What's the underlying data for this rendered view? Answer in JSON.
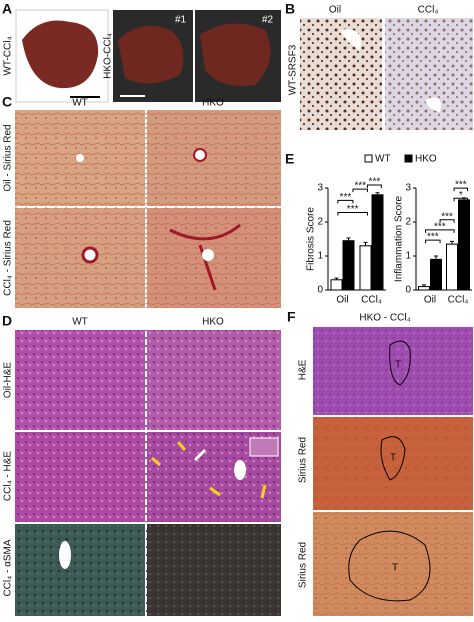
{
  "panels": {
    "a": {
      "letter": "A",
      "row_label": "WT-CCl₄",
      "group_label": "HKO-CCl₄",
      "sample1": "#1",
      "sample2": "#2"
    },
    "b": {
      "letter": "B",
      "col1": "Oil",
      "col2": "CCl₄",
      "row_label": "WT-SRSF3"
    },
    "c": {
      "letter": "C",
      "col1": "WT",
      "col2": "HKO",
      "row1": "Oil - Sirius Red",
      "row2": "CCl₄ - Sirius Red"
    },
    "d": {
      "letter": "D",
      "col1": "WT",
      "col2": "HKO",
      "row1": "Oil-H&E",
      "row2": "CCl₄ - H&E",
      "row3": "CCl₄ - αSMA"
    },
    "e": {
      "letter": "E"
    },
    "f": {
      "letter": "F",
      "title": "HKO - CCl₄",
      "row1": "H&E",
      "row2": "Sirius Red",
      "row3": "Sirius Red",
      "tumor1": "T",
      "tumor2": "T",
      "tumor3": "T"
    }
  },
  "chart_data": [
    {
      "type": "bar",
      "ylabel": "Fibrosis Score",
      "categories": [
        "Oil",
        "CCl₄"
      ],
      "ylim": [
        0,
        3
      ],
      "yticks": [
        0,
        1,
        2,
        3
      ],
      "series": [
        {
          "name": "WT",
          "color": "#ffffff",
          "values": [
            0.3,
            1.3
          ],
          "errors": [
            0.05,
            0.1
          ]
        },
        {
          "name": "HKO",
          "color": "#000000",
          "values": [
            1.45,
            2.8
          ],
          "errors": [
            0.08,
            0.06
          ]
        }
      ],
      "annotations": [
        "***",
        "***",
        "***",
        "***"
      ]
    },
    {
      "type": "bar",
      "ylabel": "Inflammation Score",
      "categories": [
        "Oil",
        "CCl₄"
      ],
      "ylim": [
        0,
        3
      ],
      "yticks": [
        0,
        1,
        2,
        3
      ],
      "series": [
        {
          "color": "#ffffff",
          "values": [
            0.1,
            1.35
          ],
          "errors": [
            0.05,
            0.08
          ]
        },
        {
          "color": "#000000",
          "values": [
            0.9,
            2.65
          ],
          "errors": [
            0.1,
            0.06
          ]
        }
      ],
      "annotations": [
        "***",
        "***",
        "***",
        "*",
        "***"
      ]
    }
  ]
}
